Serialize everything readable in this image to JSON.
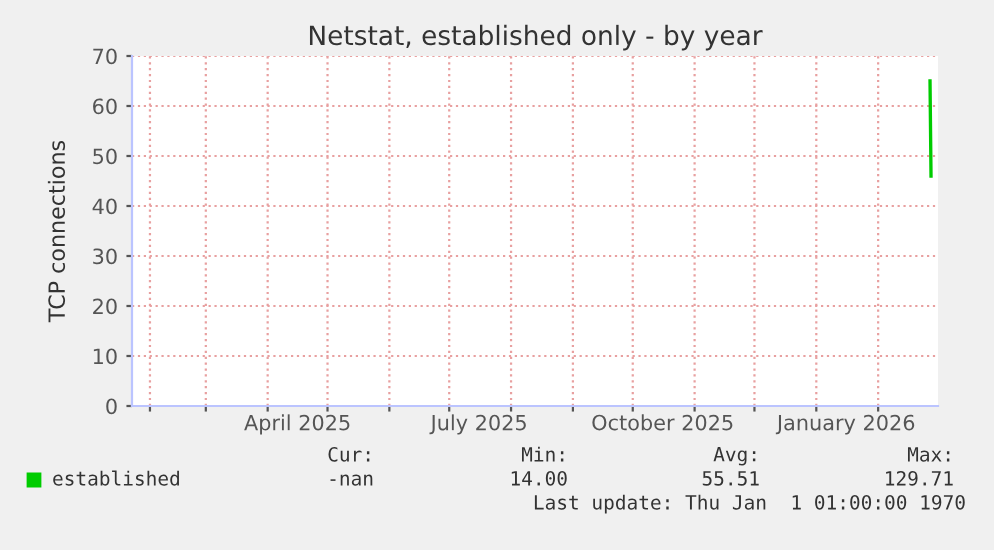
{
  "chart_data": {
    "type": "line",
    "title": "Netstat, established only - by year",
    "ylabel": "TCP connections",
    "series": [
      {
        "name": "established",
        "color": "#00cc00",
        "x": [
          "2026-02-27",
          "2026-02-27T12:00"
        ],
        "values": [
          65,
          46
        ]
      }
    ],
    "xlim": [
      "2025-01-23",
      "2026-03-03"
    ],
    "xticks": [
      {
        "value": "2025-02-01",
        "label": null
      },
      {
        "value": "2025-03-01",
        "label": null
      },
      {
        "value": "2025-04-01",
        "label": null
      },
      {
        "value": "2025-05-01",
        "label": null
      },
      {
        "value": "2025-06-01",
        "label": null
      },
      {
        "value": "2025-07-01",
        "label": null
      },
      {
        "value": "2025-08-01",
        "label": null
      },
      {
        "value": "2025-09-01",
        "label": null
      },
      {
        "value": "2025-10-01",
        "label": null
      },
      {
        "value": "2025-11-01",
        "label": null
      },
      {
        "value": "2025-12-01",
        "label": null
      },
      {
        "value": "2026-01-01",
        "label": null
      },
      {
        "value": "2026-02-01",
        "label": null
      },
      {
        "value": "2025-04-16",
        "label": "April 2025"
      },
      {
        "value": "2025-07-16",
        "label": "July 2025"
      },
      {
        "value": "2025-10-16",
        "label": "October 2025"
      },
      {
        "value": "2026-01-16",
        "label": "January 2026"
      }
    ],
    "ylim": [
      0,
      70
    ],
    "yticks": [
      0,
      10,
      20,
      30,
      40,
      50,
      60,
      70
    ],
    "grid": true,
    "legend": "bottom",
    "marker": "none",
    "line_style": "solid",
    "annotations": [
      "Cur:",
      "Min:",
      "Avg:",
      "Max:",
      "-nan",
      "14.00",
      "55.51",
      "129.71",
      "Last update: Thu Jan  1 01:00:00 1970"
    ]
  }
}
